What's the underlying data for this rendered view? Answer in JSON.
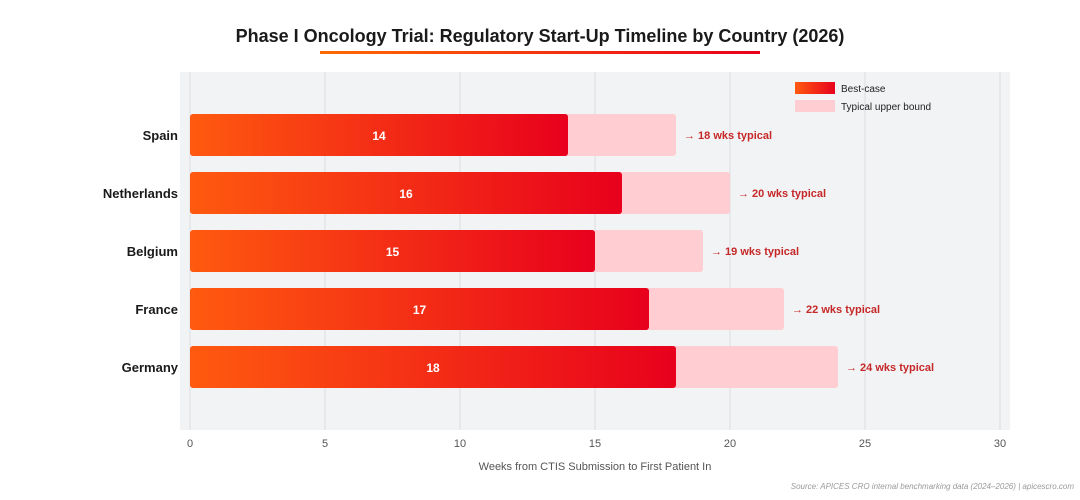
{
  "chart_data": {
    "type": "bar",
    "orientation": "horizontal",
    "stacked_overlay": true,
    "title": "Phase I Oncology Trial: Regulatory Start-Up Timeline by Country (2026)",
    "xlabel": "Weeks from CTIS Submission to First Patient In",
    "ylabel": "",
    "xlim": [
      0,
      30
    ],
    "xticks": [
      0,
      5,
      10,
      15,
      20,
      25,
      30
    ],
    "grid": true,
    "legend_position": "top-right",
    "categories": [
      "Spain",
      "Netherlands",
      "Belgium",
      "France",
      "Germany"
    ],
    "series": [
      {
        "name": "Best-case",
        "values": [
          14,
          16,
          15,
          17,
          18
        ],
        "color_start": "#ff5a0f",
        "color_end": "#e8001c"
      },
      {
        "name": "Typical upper bound",
        "values": [
          18,
          20,
          19,
          22,
          24
        ],
        "color": "#ffcdd2"
      }
    ],
    "annotations": [
      "→ 18 wks typical",
      "→ 20 wks typical",
      "→ 19 wks typical",
      "→ 22 wks typical",
      "→ 24 wks typical"
    ],
    "source": "Source: APICES CRO internal benchmarking data (2024–2026) | apicescro.com",
    "colors": {
      "plot_background": "#f2f3f5",
      "grid": "#e2e4e8",
      "annotation_text": "#c62828",
      "title_underline_start": "#ff6a00",
      "title_underline_end": "#e8001c"
    }
  }
}
